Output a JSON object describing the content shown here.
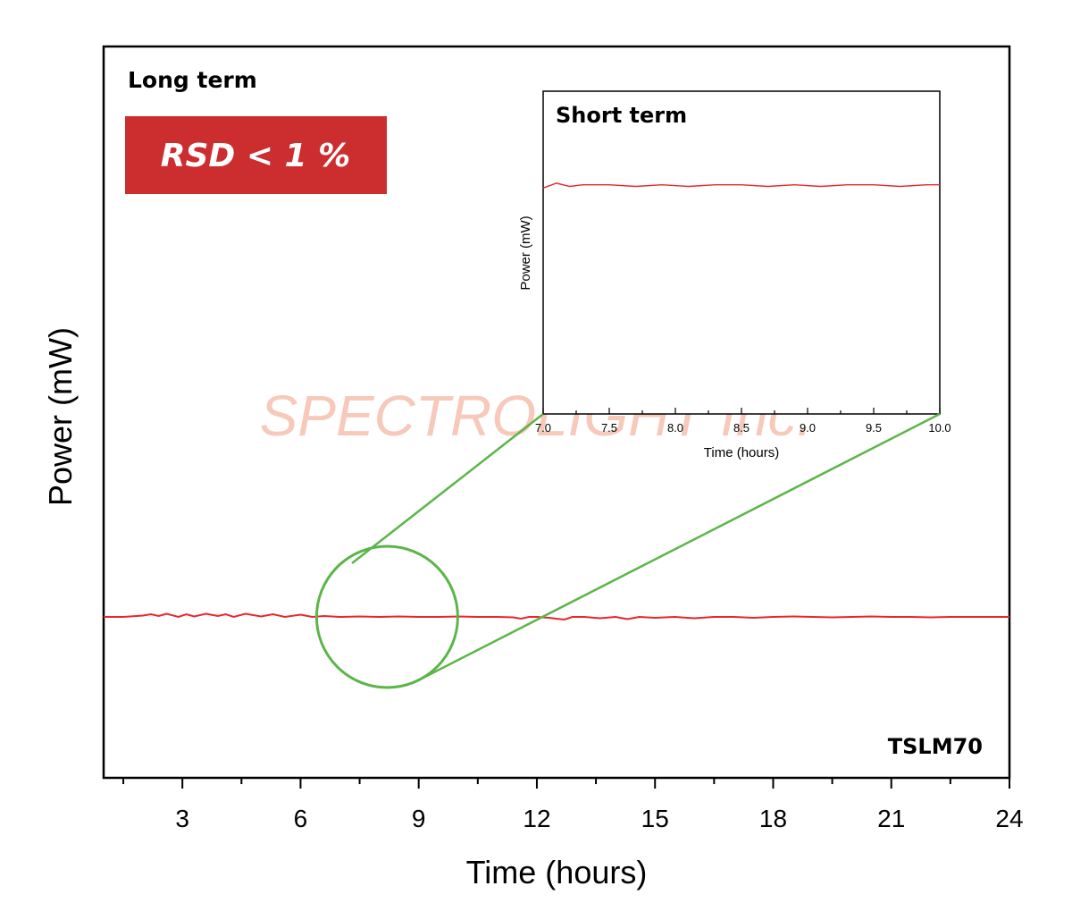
{
  "colors": {
    "series": "#e8262c",
    "badge": "#cc2d2f",
    "zoom": "#5cb54a",
    "watermark": "#f7c9ba",
    "axis": "#000000"
  },
  "chart_data": [
    {
      "type": "line",
      "title": "Long term",
      "xlabel": "Time (hours)",
      "ylabel": "Power (mW)",
      "xlim": [
        1,
        24
      ],
      "ylim": [
        -1,
        1
      ],
      "xticks": [
        3,
        6,
        9,
        12,
        15,
        18,
        21,
        24
      ],
      "tick_labels": [
        "3",
        "6",
        "9",
        "12",
        "15",
        "18",
        "21",
        "24"
      ],
      "series": [
        {
          "x": [
            1.0,
            1.5,
            2.0,
            2.2,
            2.4,
            2.6,
            2.9,
            3.1,
            3.3,
            3.6,
            3.9,
            4.1,
            4.3,
            4.6,
            5.0,
            5.3,
            5.6,
            6.0,
            6.3,
            6.6,
            7.0,
            7.5,
            8.0,
            8.5,
            9.0,
            9.5,
            10.0,
            10.5,
            11.0,
            11.4,
            11.6,
            11.8,
            12.0,
            12.3,
            12.7,
            12.9,
            13.2,
            13.6,
            14.0,
            14.3,
            14.6,
            15.0,
            15.5,
            16.0,
            16.5,
            17.0,
            17.5,
            18.0,
            18.5,
            19.0,
            19.5,
            20.0,
            20.5,
            21.0,
            21.5,
            22.0,
            22.5,
            23.0,
            23.5,
            24.0
          ],
          "values": [
            0.0,
            0.0,
            0.03,
            0.06,
            0.02,
            0.07,
            0.0,
            0.06,
            0.01,
            0.07,
            0.02,
            0.06,
            0.0,
            0.07,
            0.01,
            0.06,
            0.0,
            0.05,
            0.0,
            0.02,
            0.0,
            0.01,
            0.0,
            0.01,
            0.0,
            0.0,
            0.01,
            0.0,
            0.0,
            -0.01,
            -0.04,
            0.0,
            0.0,
            -0.02,
            -0.06,
            0.0,
            0.0,
            -0.03,
            0.0,
            -0.05,
            0.0,
            -0.02,
            0.0,
            -0.03,
            0.0,
            0.0,
            -0.02,
            0.0,
            0.01,
            0.0,
            -0.01,
            0.0,
            0.01,
            0.0,
            0.0,
            -0.01,
            0.0,
            0.0,
            0.0,
            0.0
          ]
        }
      ],
      "annotations": {
        "rsd": "RSD < 1 %",
        "model": "TSLM70",
        "watermark": "SPECTROLIGHT Inc.",
        "zoom_center_x": 8.2,
        "zoom_center_y": 0
      }
    },
    {
      "type": "line",
      "title": "Short term",
      "xlabel": "Time (hours)",
      "ylabel": "Power (mW)",
      "xlim": [
        7.0,
        10.0
      ],
      "ylim": [
        -1,
        1
      ],
      "xticks": [
        7.0,
        7.5,
        8.0,
        8.5,
        9.0,
        9.5,
        10.0
      ],
      "tick_labels": [
        "7.0",
        "7.5",
        "8.0",
        "8.5",
        "9.0",
        "9.5",
        "10.0"
      ],
      "series": [
        {
          "x": [
            7.0,
            7.1,
            7.2,
            7.3,
            7.5,
            7.7,
            7.9,
            8.1,
            8.3,
            8.5,
            8.7,
            8.9,
            9.1,
            9.3,
            9.5,
            9.7,
            9.9,
            10.0
          ],
          "values": [
            0.4,
            0.43,
            0.41,
            0.42,
            0.42,
            0.41,
            0.42,
            0.41,
            0.42,
            0.42,
            0.41,
            0.42,
            0.41,
            0.42,
            0.42,
            0.41,
            0.42,
            0.42
          ]
        }
      ]
    }
  ]
}
